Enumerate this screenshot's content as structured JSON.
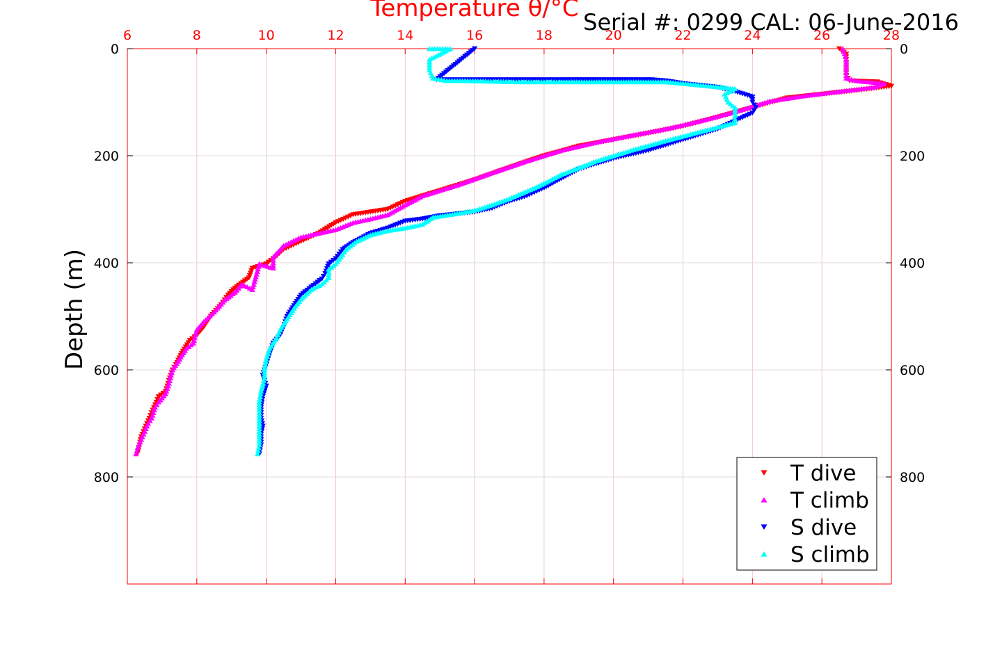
{
  "chart_data": {
    "type": "scatter",
    "title": "Temperature θ/°C",
    "subtitle": "Serial #: 0299 CAL: 06-June-2016",
    "xlabel": "Temperature θ/°C",
    "ylabel": "Depth (m)",
    "xlim": [
      6,
      28
    ],
    "ylim": [
      1000,
      0
    ],
    "x_ticks": [
      "6",
      "8",
      "10",
      "12",
      "14",
      "16",
      "18",
      "20",
      "22",
      "24",
      "26",
      "28"
    ],
    "y_ticks": [
      "0",
      "200",
      "400",
      "600",
      "800"
    ],
    "grid": true,
    "legend_position": "bottom-right",
    "series": [
      {
        "name": "T dive",
        "color": "#ff0000",
        "marker": "triangle-down",
        "points": [
          [
            26.5,
            0
          ],
          [
            26.7,
            10
          ],
          [
            26.7,
            30
          ],
          [
            26.7,
            50
          ],
          [
            26.8,
            60
          ],
          [
            27.6,
            62
          ],
          [
            28,
            70
          ],
          [
            27,
            78
          ],
          [
            26,
            85
          ],
          [
            25,
            92
          ],
          [
            24,
            110
          ],
          [
            23,
            128
          ],
          [
            22,
            145
          ],
          [
            21,
            158
          ],
          [
            20,
            170
          ],
          [
            19,
            182
          ],
          [
            18,
            200
          ],
          [
            17,
            222
          ],
          [
            16,
            245
          ],
          [
            15,
            265
          ],
          [
            14,
            285
          ],
          [
            13.5,
            300
          ],
          [
            13,
            305
          ],
          [
            12.5,
            310
          ],
          [
            12,
            325
          ],
          [
            11.5,
            345
          ],
          [
            11,
            360
          ],
          [
            10.5,
            375
          ],
          [
            10.2,
            392
          ],
          [
            10,
            402
          ],
          [
            9.6,
            410
          ],
          [
            9.5,
            428
          ],
          [
            9.1,
            447
          ],
          [
            8.9,
            460
          ],
          [
            8.7,
            478
          ],
          [
            8.4,
            500
          ],
          [
            8.2,
            520
          ],
          [
            8,
            535
          ],
          [
            7.8,
            545
          ],
          [
            7.6,
            565
          ],
          [
            7.4,
            590
          ],
          [
            7.3,
            600
          ],
          [
            7.2,
            620
          ],
          [
            7.1,
            640
          ],
          [
            6.9,
            650
          ],
          [
            6.8,
            665
          ],
          [
            6.7,
            680
          ],
          [
            6.6,
            695
          ],
          [
            6.5,
            710
          ],
          [
            6.4,
            725
          ],
          [
            6.35,
            740
          ],
          [
            6.3,
            755
          ]
        ]
      },
      {
        "name": "T climb",
        "color": "#ff00ff",
        "marker": "triangle-up",
        "points": [
          [
            26.6,
            0
          ],
          [
            26.7,
            20
          ],
          [
            26.7,
            40
          ],
          [
            26.7,
            55
          ],
          [
            27,
            60
          ],
          [
            27.8,
            65
          ],
          [
            27.5,
            72
          ],
          [
            26.5,
            80
          ],
          [
            25.5,
            88
          ],
          [
            24.5,
            98
          ],
          [
            23.5,
            118
          ],
          [
            22.5,
            135
          ],
          [
            21.5,
            150
          ],
          [
            20.5,
            162
          ],
          [
            19.5,
            175
          ],
          [
            18.5,
            190
          ],
          [
            17.5,
            210
          ],
          [
            16.5,
            232
          ],
          [
            15.5,
            255
          ],
          [
            14.5,
            275
          ],
          [
            14,
            292
          ],
          [
            13.5,
            310
          ],
          [
            13,
            318
          ],
          [
            12.5,
            325
          ],
          [
            12,
            338
          ],
          [
            11.5,
            345
          ],
          [
            11,
            352
          ],
          [
            10.5,
            368
          ],
          [
            10.2,
            390
          ],
          [
            10.2,
            410
          ],
          [
            9.8,
            402
          ],
          [
            9.6,
            450
          ],
          [
            9.3,
            440
          ],
          [
            9.1,
            455
          ],
          [
            8.8,
            470
          ],
          [
            8.5,
            492
          ],
          [
            8.2,
            510
          ],
          [
            8,
            525
          ],
          [
            7.9,
            550
          ],
          [
            7.7,
            560
          ],
          [
            7.5,
            580
          ],
          [
            7.3,
            600
          ],
          [
            7.2,
            625
          ],
          [
            7.1,
            645
          ],
          [
            6.9,
            660
          ],
          [
            6.8,
            670
          ],
          [
            6.7,
            690
          ],
          [
            6.6,
            700
          ],
          [
            6.5,
            715
          ],
          [
            6.4,
            730
          ],
          [
            6.3,
            745
          ],
          [
            6.25,
            757
          ]
        ]
      },
      {
        "name": "S dive",
        "color": "#0000ff",
        "marker": "triangle-down",
        "points": [
          [
            16,
            0
          ],
          [
            14.9,
            58
          ],
          [
            18.5,
            58
          ],
          [
            21.1,
            58
          ],
          [
            21.5,
            60
          ],
          [
            22,
            65
          ],
          [
            23,
            72
          ],
          [
            23.5,
            80
          ],
          [
            24,
            90
          ],
          [
            24,
            100
          ],
          [
            24.1,
            110
          ],
          [
            24,
            120
          ],
          [
            23.5,
            135
          ],
          [
            23,
            150
          ],
          [
            22,
            170
          ],
          [
            21,
            190
          ],
          [
            20,
            205
          ],
          [
            19,
            225
          ],
          [
            18,
            260
          ],
          [
            17.5,
            275
          ],
          [
            17,
            285
          ],
          [
            16.5,
            298
          ],
          [
            16,
            305
          ],
          [
            15,
            312
          ],
          [
            14.5,
            318
          ],
          [
            14,
            322
          ],
          [
            13.5,
            335
          ],
          [
            13,
            345
          ],
          [
            12.5,
            362
          ],
          [
            12.2,
            375
          ],
          [
            12,
            392
          ],
          [
            11.8,
            402
          ],
          [
            11.7,
            420
          ],
          [
            11.6,
            430
          ],
          [
            11.3,
            445
          ],
          [
            11,
            460
          ],
          [
            10.8,
            480
          ],
          [
            10.6,
            500
          ],
          [
            10.5,
            520
          ],
          [
            10.4,
            535
          ],
          [
            10.2,
            550
          ],
          [
            10.1,
            570
          ],
          [
            10,
            590
          ],
          [
            9.9,
            610
          ],
          [
            10,
            630
          ],
          [
            9.9,
            650
          ],
          [
            9.85,
            670
          ],
          [
            9.85,
            690
          ],
          [
            9.9,
            705
          ],
          [
            9.85,
            720
          ],
          [
            9.85,
            740
          ],
          [
            9.8,
            757
          ]
        ]
      },
      {
        "name": "S climb",
        "color": "#00ffff",
        "marker": "triangle-up",
        "points": [
          [
            14.7,
            0
          ],
          [
            15.3,
            0
          ],
          [
            14.7,
            20
          ],
          [
            14.7,
            40
          ],
          [
            14.8,
            55
          ],
          [
            15.2,
            60
          ],
          [
            15.8,
            60
          ],
          [
            17.2,
            62
          ],
          [
            19.3,
            62
          ],
          [
            21.5,
            62
          ],
          [
            22,
            65
          ],
          [
            22.8,
            70
          ],
          [
            23.5,
            75
          ],
          [
            23.2,
            85
          ],
          [
            23.3,
            100
          ],
          [
            23.5,
            110
          ],
          [
            23.5,
            125
          ],
          [
            23.5,
            138
          ],
          [
            22.5,
            155
          ],
          [
            21.5,
            172
          ],
          [
            20.5,
            190
          ],
          [
            19.5,
            210
          ],
          [
            18.5,
            235
          ],
          [
            17.8,
            258
          ],
          [
            17,
            280
          ],
          [
            16.5,
            292
          ],
          [
            16,
            302
          ],
          [
            15.5,
            308
          ],
          [
            14.8,
            315
          ],
          [
            14.5,
            328
          ],
          [
            14,
            335
          ],
          [
            13.5,
            340
          ],
          [
            13,
            348
          ],
          [
            12.6,
            360
          ],
          [
            12.3,
            375
          ],
          [
            12.2,
            385
          ],
          [
            12,
            402
          ],
          [
            11.8,
            412
          ],
          [
            11.8,
            428
          ],
          [
            11.6,
            440
          ],
          [
            11.3,
            450
          ],
          [
            11,
            468
          ],
          [
            10.8,
            485
          ],
          [
            10.6,
            505
          ],
          [
            10.4,
            525
          ],
          [
            10.3,
            540
          ],
          [
            10.1,
            560
          ],
          [
            10,
            580
          ],
          [
            9.95,
            600
          ],
          [
            9.95,
            615
          ],
          [
            9.85,
            640
          ],
          [
            9.8,
            660
          ],
          [
            9.8,
            680
          ],
          [
            9.8,
            700
          ],
          [
            9.8,
            720
          ],
          [
            9.8,
            740
          ],
          [
            9.75,
            757
          ]
        ]
      }
    ]
  }
}
